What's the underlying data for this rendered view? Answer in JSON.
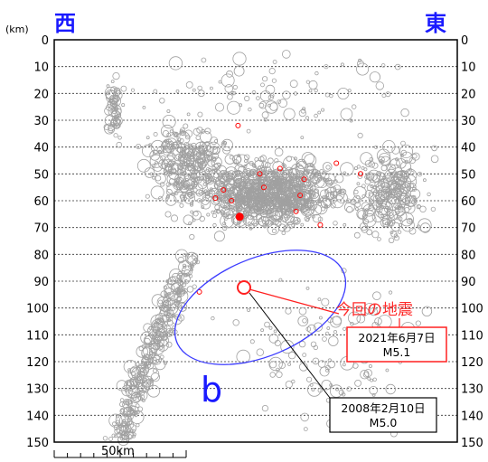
{
  "chart_data": {
    "type": "scatter",
    "title": "",
    "unit_label": "(km)",
    "west_label": "西",
    "east_label": "東",
    "ylabel": "",
    "ylim": [
      0,
      150
    ],
    "yticks": [
      0,
      10,
      20,
      30,
      40,
      50,
      60,
      70,
      80,
      90,
      100,
      110,
      120,
      130,
      140,
      150
    ],
    "grid": "horizontal dashed every 10 km",
    "scale_bar_label": "50km",
    "region_label": "b",
    "series": [
      {
        "color": "#a0a0a0",
        "clusters": [
          {
            "x": [
              150,
              380
            ],
            "y": [
              40,
              75
            ],
            "count": 900
          },
          {
            "x": [
              100,
              230
            ],
            "y": [
              25,
              70
            ],
            "count": 300
          },
          {
            "x": [
              350,
              480
            ],
            "y": [
              35,
              80
            ],
            "count": 250
          },
          {
            "x": [
              60,
              180
            ],
            "y": [
              80,
              150
            ],
            "count": 350
          },
          {
            "x": [
              60,
              90
            ],
            "y": [
              10,
              40
            ],
            "count": 60
          },
          {
            "x": [
              180,
              500
            ],
            "y": [
              80,
              150
            ],
            "count": 120
          },
          {
            "x": [
              60,
              500
            ],
            "y": [
              0,
              40
            ],
            "count": 90
          }
        ]
      },
      {
        "color": "#ff0000",
        "points": [
          [
            230,
            66
          ],
          [
            220,
            60
          ],
          [
            200,
            59
          ],
          [
            210,
            56
          ],
          [
            255,
            50
          ],
          [
            260,
            55
          ],
          [
            280,
            48
          ],
          [
            305,
            58
          ],
          [
            300,
            64
          ],
          [
            330,
            69
          ],
          [
            380,
            50
          ],
          [
            350,
            46
          ],
          [
            180,
            94
          ],
          [
            228,
            32
          ],
          [
            310,
            52
          ]
        ]
      }
    ],
    "annotations": [
      {
        "text": "今回の地震",
        "color": "#ff2a2a"
      },
      {
        "date": "2021年6月7日",
        "mag": "M5.1",
        "box_color": "#ff2a2a"
      },
      {
        "date": "2008年2月10日",
        "mag": "M5.0",
        "box_color": "#000000"
      }
    ]
  }
}
